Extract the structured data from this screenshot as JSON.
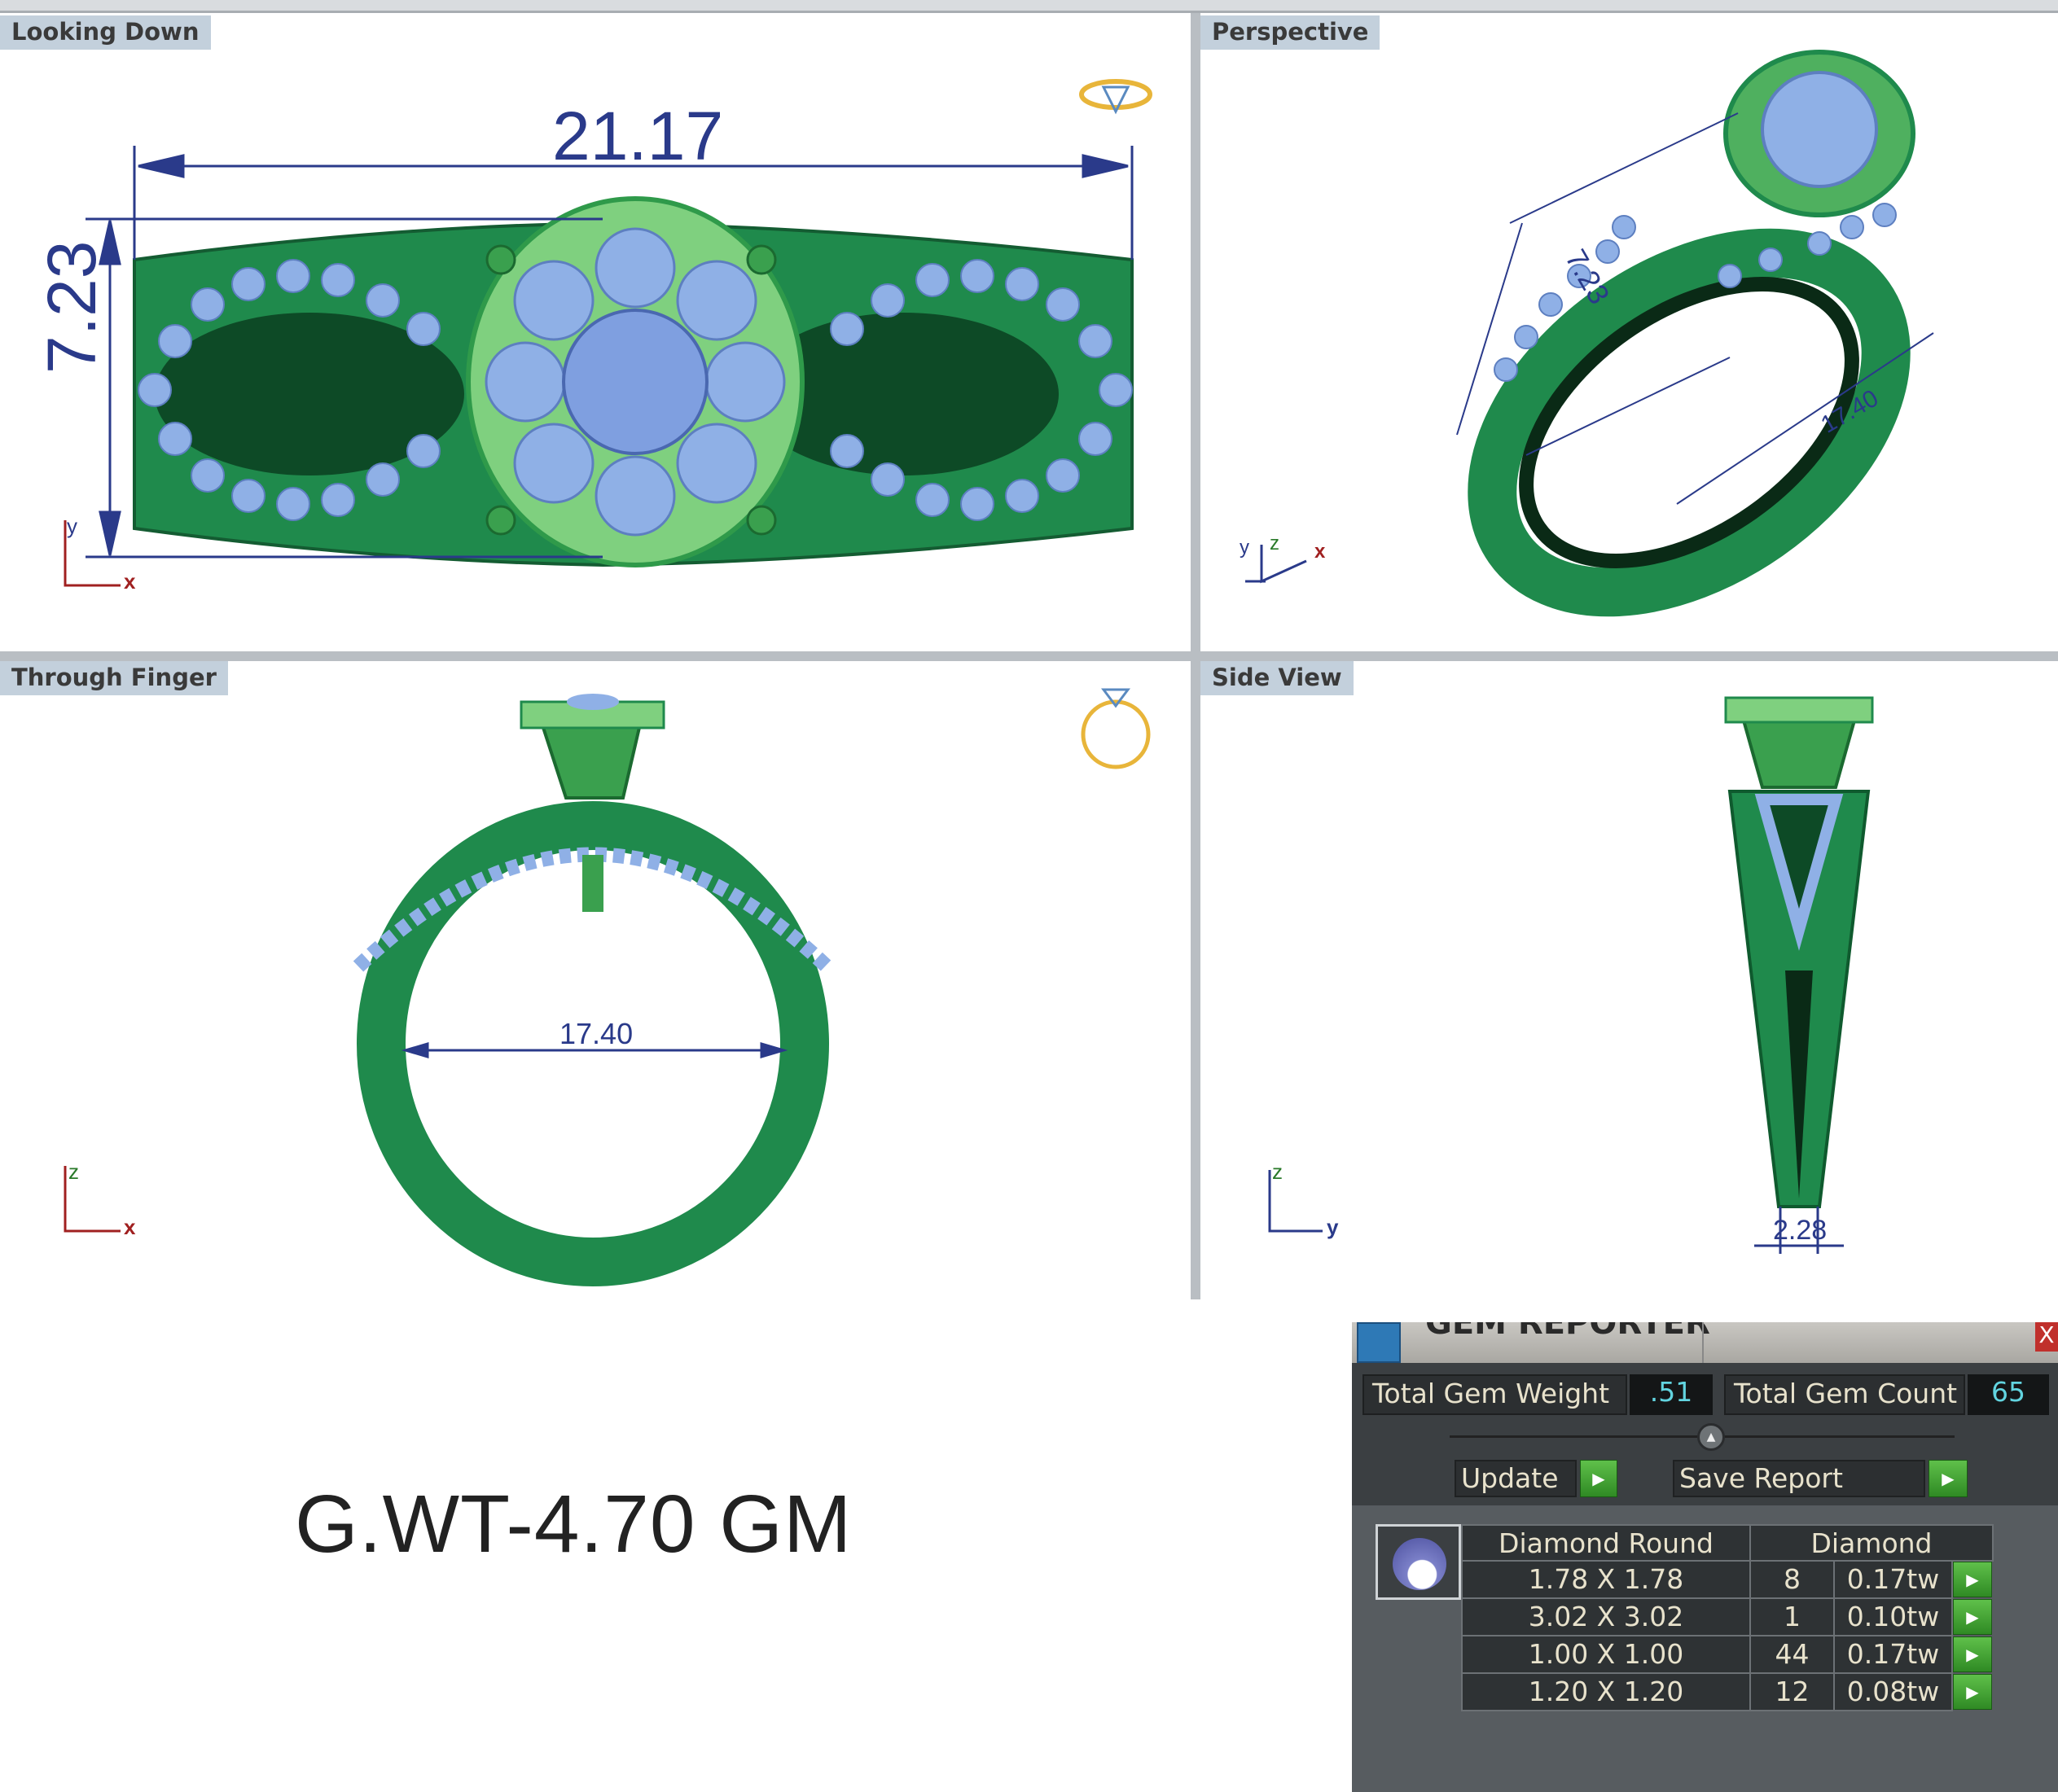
{
  "viewports": {
    "top_left": {
      "label": "Looking Down",
      "dim_width": "21.17",
      "dim_height": "7.23",
      "axis_v": "y",
      "axis_h": "x"
    },
    "top_right": {
      "label": "Perspective",
      "dim_a": "7.23",
      "dim_b": "17.40",
      "axis_1": "y",
      "axis_2": "z",
      "axis_3": "x"
    },
    "bottom_left": {
      "label": "Through Finger",
      "dim_inner": "17.40",
      "axis_v": "z",
      "axis_h": "x"
    },
    "bottom_right": {
      "label": "Side View",
      "dim_shank": "2.28",
      "axis_v": "z",
      "axis_h": "y"
    }
  },
  "gold_weight": "G.WT-4.70 GM",
  "gem_reporter": {
    "title": "GEM REPORTER",
    "close": "X",
    "total_weight_label": "Total Gem Weight",
    "total_weight_value": ".51",
    "total_count_label": "Total Gem Count",
    "total_count_value": "65",
    "update_label": "Update",
    "save_label": "Save Report",
    "table": {
      "header_shape": "Diamond Round",
      "header_material": "Diamond",
      "rows": [
        {
          "size": "1.78 X 1.78",
          "count": "8",
          "weight": "0.17tw"
        },
        {
          "size": "3.02 X 3.02",
          "count": "1",
          "weight": "0.10tw"
        },
        {
          "size": "1.00 X 1.00",
          "count": "44",
          "weight": "0.17tw"
        },
        {
          "size": "1.20 X 1.20",
          "count": "12",
          "weight": "0.08tw"
        }
      ]
    }
  },
  "colors": {
    "metal": "#1f8a4c",
    "metal_light": "#7fd07f",
    "gem": "#8fb0e6",
    "dimension": "#2a3a8a",
    "accent_button": "#3fa033"
  }
}
